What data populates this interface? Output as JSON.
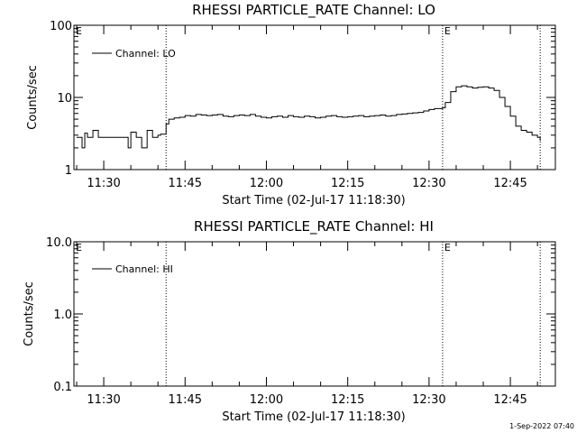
{
  "timestamp": "1-Sep-2022 07:40",
  "chart_data": [
    {
      "type": "line",
      "title": "RHESSI PARTICLE_RATE Channel: LO",
      "xlabel": "Start Time (02-Jul-17 11:18:30)",
      "ylabel": "Counts/sec",
      "ylog": true,
      "ylim": [
        1,
        100
      ],
      "ytick_labels": [
        "1",
        "10",
        "100"
      ],
      "xlim_minutes": [
        684.5,
        773.3
      ],
      "xtick_minutes": [
        690,
        705,
        720,
        735,
        750,
        765
      ],
      "xtick_labels": [
        "11:30",
        "11:45",
        "12:00",
        "12:15",
        "12:30",
        "12:45"
      ],
      "event_lines_minutes": [
        701.5,
        752.5,
        770.5
      ],
      "event_markers": [
        {
          "label": "E",
          "x_minutes": 684.5
        },
        {
          "label": "E",
          "x_minutes": 752.5
        }
      ],
      "legend": "top-left",
      "series": [
        {
          "name": "Channel: LO",
          "x_minutes": [
            685,
            686,
            686.5,
            687,
            688,
            689,
            690,
            691,
            692,
            693,
            694,
            694.5,
            695,
            696,
            697,
            698,
            699,
            700,
            700.5,
            701.5,
            702,
            703,
            704,
            705,
            706,
            707,
            708,
            709,
            710,
            711,
            712,
            713,
            714,
            715,
            716,
            717,
            718,
            719,
            720,
            721,
            722,
            723,
            724,
            725,
            726,
            727,
            728,
            729,
            730,
            731,
            732,
            733,
            734,
            735,
            736,
            737,
            738,
            739,
            740,
            741,
            742,
            743,
            744,
            745,
            746,
            747,
            748,
            749,
            750,
            751,
            752,
            752.5,
            753,
            754,
            755,
            756,
            757,
            758,
            759,
            760,
            761,
            762,
            763,
            764,
            765,
            766,
            767,
            768,
            769,
            770,
            770.5
          ],
          "values": [
            2.8,
            2.0,
            3.2,
            2.8,
            3.5,
            2.8,
            2.8,
            2.8,
            2.8,
            2.8,
            2.8,
            2.0,
            3.3,
            2.8,
            2.0,
            3.5,
            2.8,
            3.0,
            3.1,
            4.3,
            5.0,
            5.2,
            5.3,
            5.6,
            5.5,
            5.8,
            5.7,
            5.6,
            5.7,
            5.8,
            5.5,
            5.4,
            5.6,
            5.7,
            5.6,
            5.8,
            5.5,
            5.3,
            5.2,
            5.4,
            5.5,
            5.3,
            5.6,
            5.4,
            5.3,
            5.5,
            5.4,
            5.2,
            5.3,
            5.5,
            5.6,
            5.4,
            5.3,
            5.4,
            5.5,
            5.6,
            5.4,
            5.5,
            5.6,
            5.7,
            5.5,
            5.6,
            5.8,
            5.9,
            6.0,
            6.1,
            6.2,
            6.5,
            6.8,
            7.0,
            7.0,
            7.2,
            8.5,
            12.0,
            14.0,
            14.5,
            14.0,
            13.5,
            13.8,
            14.0,
            13.5,
            12.5,
            10.0,
            7.5,
            5.5,
            4.0,
            3.5,
            3.3,
            3.0,
            2.8,
            2.5
          ]
        }
      ]
    },
    {
      "type": "line",
      "title": "RHESSI PARTICLE_RATE Channel: HI",
      "xlabel": "Start Time (02-Jul-17 11:18:30)",
      "ylabel": "Counts/sec",
      "ylog": true,
      "ylim": [
        0.1,
        10
      ],
      "ytick_labels": [
        "0.1",
        "1.0",
        "10.0"
      ],
      "xlim_minutes": [
        684.5,
        773.3
      ],
      "xtick_minutes": [
        690,
        705,
        720,
        735,
        750,
        765
      ],
      "xtick_labels": [
        "11:30",
        "11:45",
        "12:00",
        "12:15",
        "12:30",
        "12:45"
      ],
      "event_lines_minutes": [
        701.5,
        752.5,
        770.5
      ],
      "event_markers": [
        {
          "label": "E",
          "x_minutes": 684.5
        },
        {
          "label": "E",
          "x_minutes": 752.5
        }
      ],
      "legend": "top-left",
      "series": [
        {
          "name": "Channel: HI",
          "x_minutes": [],
          "values": []
        }
      ]
    }
  ]
}
